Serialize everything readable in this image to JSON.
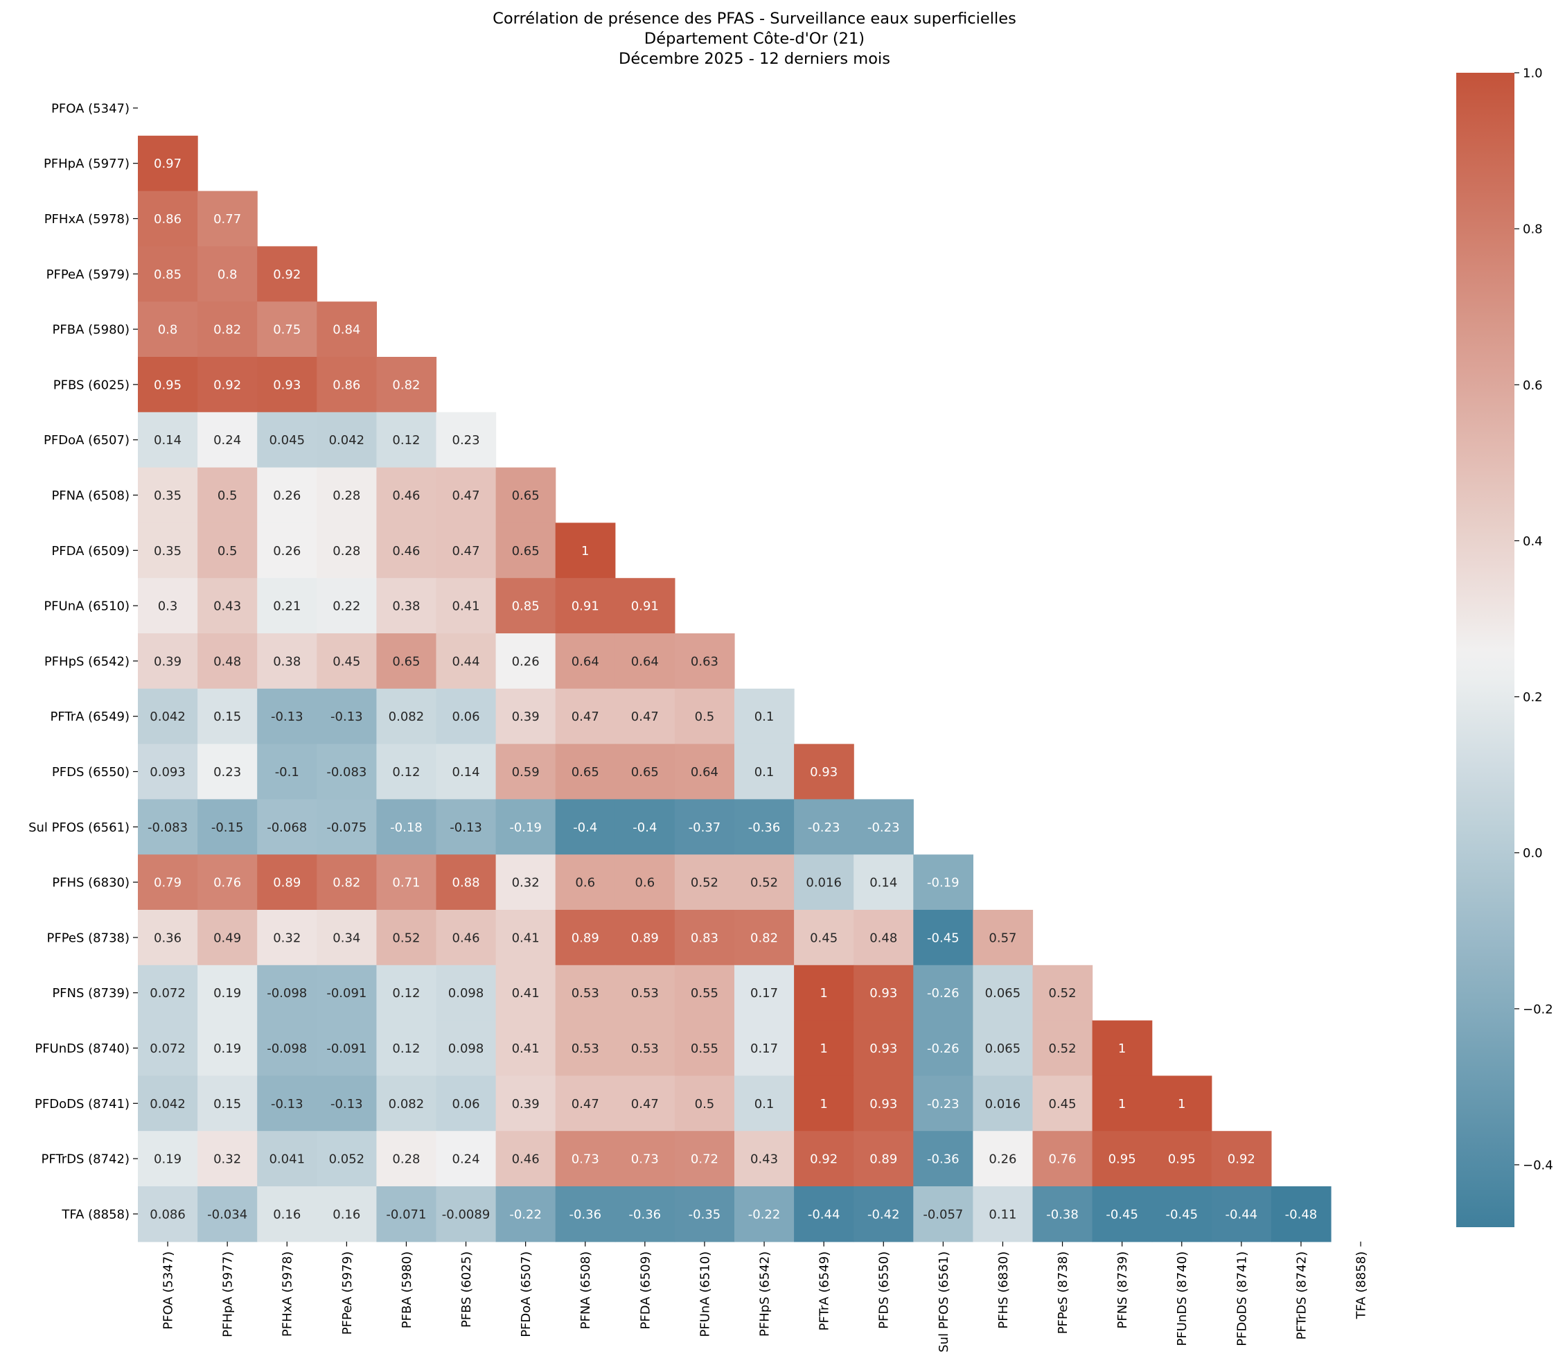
{
  "chart_data": {
    "type": "heatmap",
    "title": [
      "Corrélation de présence des PFAS - Surveillance eaux superficielles",
      "Département Côte-d'Or (21)",
      "Décembre 2025 - 12 derniers mois"
    ],
    "labels": [
      "PFOA (5347)",
      "PFHpA (5977)",
      "PFHxA (5978)",
      "PFPeA (5979)",
      "PFBA (5980)",
      "PFBS (6025)",
      "PFDoA (6507)",
      "PFNA (6508)",
      "PFDA (6509)",
      "PFUnA (6510)",
      "PFHpS (6542)",
      "PFTrA (6549)",
      "PFDS (6550)",
      "Sul PFOS (6561)",
      "PFHS (6830)",
      "PFPeS (8738)",
      "PFNS (8739)",
      "PFUnDS (8740)",
      "PFDoDS (8741)",
      "PFTrDS (8742)",
      "TFA (8858)"
    ],
    "mask": "upper triangle including diagonal",
    "lower_triangle": [
      [],
      [
        0.97
      ],
      [
        0.86,
        0.77
      ],
      [
        0.85,
        0.8,
        0.92
      ],
      [
        0.8,
        0.82,
        0.75,
        0.84
      ],
      [
        0.95,
        0.92,
        0.93,
        0.86,
        0.82
      ],
      [
        0.14,
        0.24,
        0.045,
        0.042,
        0.12,
        0.23
      ],
      [
        0.35,
        0.5,
        0.26,
        0.28,
        0.46,
        0.47,
        0.65
      ],
      [
        0.35,
        0.5,
        0.26,
        0.28,
        0.46,
        0.47,
        0.65,
        1
      ],
      [
        0.3,
        0.43,
        0.21,
        0.22,
        0.38,
        0.41,
        0.85,
        0.91,
        0.91
      ],
      [
        0.39,
        0.48,
        0.38,
        0.45,
        0.65,
        0.44,
        0.26,
        0.64,
        0.64,
        0.63
      ],
      [
        0.042,
        0.15,
        -0.13,
        -0.13,
        0.082,
        0.06,
        0.39,
        0.47,
        0.47,
        0.5,
        0.1
      ],
      [
        0.093,
        0.23,
        -0.1,
        -0.083,
        0.12,
        0.14,
        0.59,
        0.65,
        0.65,
        0.64,
        0.1,
        0.93
      ],
      [
        -0.083,
        -0.15,
        -0.068,
        -0.075,
        -0.18,
        -0.13,
        -0.19,
        -0.4,
        -0.4,
        -0.37,
        -0.36,
        -0.23,
        -0.23
      ],
      [
        0.79,
        0.76,
        0.89,
        0.82,
        0.71,
        0.88,
        0.32,
        0.6,
        0.6,
        0.52,
        0.52,
        0.016,
        0.14,
        -0.19
      ],
      [
        0.36,
        0.49,
        0.32,
        0.34,
        0.52,
        0.46,
        0.41,
        0.89,
        0.89,
        0.83,
        0.82,
        0.45,
        0.48,
        -0.45,
        0.57
      ],
      [
        0.072,
        0.19,
        -0.098,
        -0.091,
        0.12,
        0.098,
        0.41,
        0.53,
        0.53,
        0.55,
        0.17,
        1,
        0.93,
        -0.26,
        0.065,
        0.52
      ],
      [
        0.072,
        0.19,
        -0.098,
        -0.091,
        0.12,
        0.098,
        0.41,
        0.53,
        0.53,
        0.55,
        0.17,
        1,
        0.93,
        -0.26,
        0.065,
        0.52,
        1
      ],
      [
        0.042,
        0.15,
        -0.13,
        -0.13,
        0.082,
        0.06,
        0.39,
        0.47,
        0.47,
        0.5,
        0.1,
        1,
        0.93,
        -0.23,
        0.016,
        0.45,
        1,
        1
      ],
      [
        0.19,
        0.32,
        0.041,
        0.052,
        0.28,
        0.24,
        0.46,
        0.73,
        0.73,
        0.72,
        0.43,
        0.92,
        0.89,
        -0.36,
        0.26,
        0.76,
        0.95,
        0.95,
        0.92
      ],
      [
        0.086,
        -0.034,
        0.16,
        0.16,
        -0.071,
        -0.0089,
        -0.22,
        -0.36,
        -0.36,
        -0.35,
        -0.22,
        -0.44,
        -0.42,
        -0.057,
        0.11,
        -0.38,
        -0.45,
        -0.45,
        -0.44,
        -0.48
      ]
    ],
    "display_text": [
      [],
      [
        "0.97"
      ],
      [
        "0.86",
        "0.77"
      ],
      [
        "0.85",
        "0.8",
        "0.92"
      ],
      [
        "0.8",
        "0.82",
        "0.75",
        "0.84"
      ],
      [
        "0.95",
        "0.92",
        "0.93",
        "0.86",
        "0.82"
      ],
      [
        "0.14",
        "0.24",
        "0.045",
        "0.042",
        "0.12",
        "0.23"
      ],
      [
        "0.35",
        "0.5",
        "0.26",
        "0.28",
        "0.46",
        "0.47",
        "0.65"
      ],
      [
        "0.35",
        "0.5",
        "0.26",
        "0.28",
        "0.46",
        "0.47",
        "0.65",
        "1"
      ],
      [
        "0.3",
        "0.43",
        "0.21",
        "0.22",
        "0.38",
        "0.41",
        "0.85",
        "0.91",
        "0.91"
      ],
      [
        "0.39",
        "0.48",
        "0.38",
        "0.45",
        "0.65",
        "0.44",
        "0.26",
        "0.64",
        "0.64",
        "0.63"
      ],
      [
        "0.042",
        "0.15",
        "-0.13",
        "-0.13",
        "0.082",
        "0.06",
        "0.39",
        "0.47",
        "0.47",
        "0.5",
        "0.1"
      ],
      [
        "0.093",
        "0.23",
        "-0.1",
        "-0.083",
        "0.12",
        "0.14",
        "0.59",
        "0.65",
        "0.65",
        "0.64",
        "0.1",
        "0.93"
      ],
      [
        "-0.083",
        "-0.15",
        "-0.068",
        "-0.075",
        "-0.18",
        "-0.13",
        "-0.19",
        "-0.4",
        "-0.4",
        "-0.37",
        "-0.36",
        "-0.23",
        "-0.23"
      ],
      [
        "0.79",
        "0.76",
        "0.89",
        "0.82",
        "0.71",
        "0.88",
        "0.32",
        "0.6",
        "0.6",
        "0.52",
        "0.52",
        "0.016",
        "0.14",
        "-0.19"
      ],
      [
        "0.36",
        "0.49",
        "0.32",
        "0.34",
        "0.52",
        "0.46",
        "0.41",
        "0.89",
        "0.89",
        "0.83",
        "0.82",
        "0.45",
        "0.48",
        "-0.45",
        "0.57"
      ],
      [
        "0.072",
        "0.19",
        "-0.098",
        "-0.091",
        "0.12",
        "0.098",
        "0.41",
        "0.53",
        "0.53",
        "0.55",
        "0.17",
        "1",
        "0.93",
        "-0.26",
        "0.065",
        "0.52"
      ],
      [
        "0.072",
        "0.19",
        "-0.098",
        "-0.091",
        "0.12",
        "0.098",
        "0.41",
        "0.53",
        "0.53",
        "0.55",
        "0.17",
        "1",
        "0.93",
        "-0.26",
        "0.065",
        "0.52",
        "1"
      ],
      [
        "0.042",
        "0.15",
        "-0.13",
        "-0.13",
        "0.082",
        "0.06",
        "0.39",
        "0.47",
        "0.47",
        "0.5",
        "0.1",
        "1",
        "0.93",
        "-0.23",
        "0.016",
        "0.45",
        "1",
        "1"
      ],
      [
        "0.19",
        "0.32",
        "0.041",
        "0.052",
        "0.28",
        "0.24",
        "0.46",
        "0.73",
        "0.73",
        "0.72",
        "0.43",
        "0.92",
        "0.89",
        "-0.36",
        "0.26",
        "0.76",
        "0.95",
        "0.95",
        "0.92"
      ],
      [
        "0.086",
        "-0.034",
        "0.16",
        "0.16",
        "-0.071",
        "-0.0089",
        "-0.22",
        "-0.36",
        "-0.36",
        "-0.35",
        "-0.22",
        "-0.44",
        "-0.42",
        "-0.057",
        "0.11",
        "-0.38",
        "-0.45",
        "-0.45",
        "-0.44",
        "-0.48"
      ]
    ],
    "colorbar": {
      "vmin": -0.48,
      "vmax": 1.0,
      "center": 0.25,
      "ticks": [
        -0.4,
        -0.2,
        0.0,
        0.2,
        0.4,
        0.6,
        0.8,
        1.0
      ],
      "tick_labels": [
        "−0.4",
        "−0.2",
        "0.0",
        "0.2",
        "0.4",
        "0.6",
        "0.8",
        "1.0"
      ]
    },
    "colors": {
      "low": "#3f7f9c",
      "mid": "#f2f2f2",
      "high": "#c4533a",
      "text_dark": "#262626",
      "text_light": "#ffffff"
    }
  }
}
